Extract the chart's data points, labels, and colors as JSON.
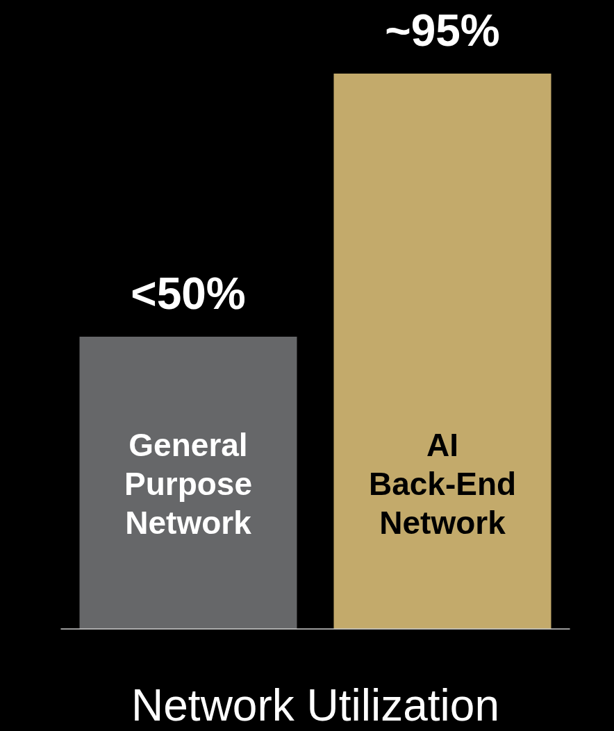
{
  "chart_data": {
    "type": "bar",
    "xlabel": "Network Utilization",
    "categories": [
      "General Purpose Network",
      "AI Back-End Network"
    ],
    "values": [
      50,
      95
    ],
    "colors": [
      "#666769",
      "#c3aa6b"
    ],
    "value_labels": [
      "<50%",
      "~95%"
    ],
    "tick_labels": "x"
  }
}
